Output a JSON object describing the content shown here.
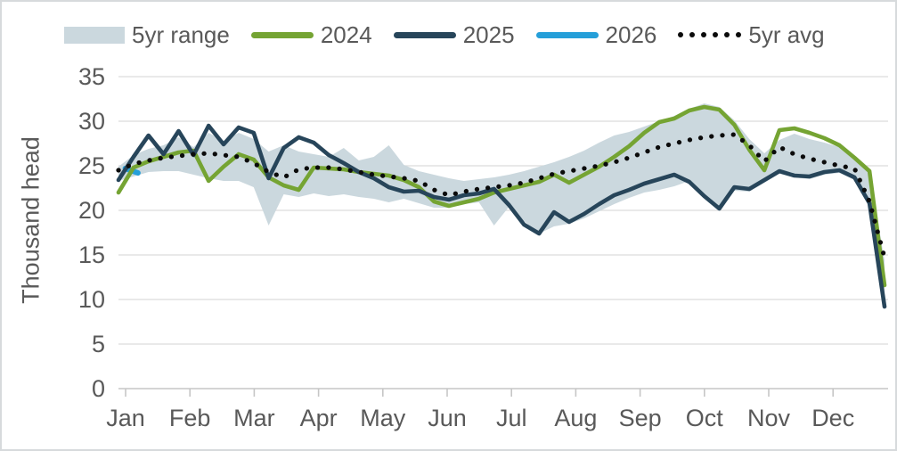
{
  "legend": {
    "items": [
      {
        "label": "5yr range",
        "kind": "band",
        "color": "#cbd8de"
      },
      {
        "label": "2024",
        "kind": "line",
        "color": "#75a433"
      },
      {
        "label": "2025",
        "kind": "line",
        "color": "#27455a"
      },
      {
        "label": "2026",
        "kind": "line",
        "color": "#259fd9"
      },
      {
        "label": "5yr avg",
        "kind": "dotted",
        "color": "#0b0b0b"
      }
    ]
  },
  "chart_data": {
    "type": "line",
    "title": "",
    "xlabel": "",
    "ylabel": "Thousand head",
    "ylim": [
      0,
      35
    ],
    "yticks": [
      0,
      5,
      10,
      15,
      20,
      25,
      30,
      35
    ],
    "x_unit": "week",
    "weeks": 52,
    "grid": "horizontal",
    "legend_position": "top",
    "months": [
      "Jan",
      "Feb",
      "Mar",
      "Apr",
      "May",
      "Jun",
      "Jul",
      "Aug",
      "Sep",
      "Oct",
      "Nov",
      "Dec"
    ],
    "colors": {
      "band": "#cbd8de",
      "line_2024": "#75a433",
      "line_2025": "#27455a",
      "line_2026": "#259fd9",
      "avg_dots": "#0b0b0b",
      "gridline": "#dcdcdc",
      "axis_line": "#c6c6c6",
      "axis_text": "#595959"
    },
    "series": [
      {
        "name": "5yr range",
        "kind": "band",
        "low": [
          23.3,
          23.8,
          24.3,
          24.4,
          24.4,
          24.0,
          23.6,
          23.3,
          23.3,
          22.6,
          18.3,
          21.8,
          21.5,
          21.9,
          21.6,
          21.8,
          21.5,
          21.3,
          20.9,
          21.3,
          20.8,
          20.3,
          20.3,
          20.7,
          20.9,
          18.3,
          20.4,
          18.8,
          17.4,
          18.2,
          18.5,
          19.1,
          19.9,
          20.7,
          21.4,
          22.0,
          22.3,
          22.7,
          23.3,
          21.4,
          19.9,
          22.2,
          22.1,
          23.1,
          24.1,
          23.7,
          23.5,
          24.0,
          24.2,
          23.4,
          20.4,
          9.1
        ],
        "high": [
          24.9,
          26.2,
          26.9,
          27.3,
          28.2,
          27.1,
          28.7,
          27.8,
          28.7,
          28.0,
          26.6,
          27.3,
          26.6,
          26.3,
          26.0,
          27.0,
          25.6,
          26.0,
          27.3,
          25.1,
          24.4,
          24.0,
          23.6,
          23.3,
          23.5,
          23.7,
          24.0,
          24.4,
          24.9,
          25.4,
          26.0,
          26.7,
          27.6,
          28.4,
          28.8,
          29.4,
          30.0,
          30.6,
          31.4,
          32.0,
          31.6,
          30.1,
          28.0,
          26.4,
          27.9,
          28.6,
          28.0,
          27.6,
          27.1,
          25.7,
          24.3,
          14.4
        ]
      },
      {
        "name": "2026",
        "kind": "line",
        "week_span": [
          1.45,
          2.3
        ],
        "values": [
          24.7,
          24.2
        ]
      },
      {
        "name": "2024",
        "kind": "line",
        "values": [
          22.0,
          24.8,
          25.5,
          26.0,
          26.5,
          26.7,
          23.3,
          24.9,
          26.3,
          25.7,
          23.7,
          22.8,
          22.3,
          24.8,
          24.7,
          24.6,
          24.3,
          24.1,
          23.9,
          23.4,
          22.6,
          21.0,
          20.5,
          20.9,
          21.3,
          22.0,
          22.4,
          22.8,
          23.2,
          24.0,
          23.1,
          24.0,
          24.9,
          26.0,
          27.2,
          28.7,
          29.9,
          30.3,
          31.2,
          31.6,
          31.3,
          29.6,
          26.8,
          24.5,
          29.0,
          29.2,
          28.7,
          28.1,
          27.3,
          25.9,
          24.4,
          11.6
        ]
      },
      {
        "name": "2025",
        "kind": "line",
        "values": [
          23.4,
          26.0,
          28.4,
          26.3,
          28.9,
          26.2,
          29.5,
          27.4,
          29.3,
          28.7,
          23.6,
          27.0,
          28.2,
          27.6,
          26.2,
          25.3,
          24.3,
          23.6,
          22.6,
          22.1,
          22.2,
          21.5,
          21.2,
          21.7,
          21.9,
          22.4,
          20.6,
          18.4,
          17.4,
          19.8,
          18.7,
          19.6,
          20.7,
          21.7,
          22.3,
          23.0,
          23.5,
          24.0,
          23.2,
          21.6,
          20.2,
          22.6,
          22.4,
          23.4,
          24.4,
          23.9,
          23.8,
          24.3,
          24.5,
          23.7,
          20.8,
          9.2
        ]
      },
      {
        "name": "5yr avg",
        "kind": "dotted",
        "values": [
          24.5,
          25.2,
          25.6,
          25.9,
          26.1,
          26.3,
          26.4,
          26.2,
          26.0,
          25.3,
          24.3,
          23.7,
          24.6,
          24.8,
          24.8,
          24.6,
          24.3,
          24.0,
          23.8,
          23.6,
          23.3,
          22.3,
          21.7,
          22.1,
          22.4,
          22.6,
          22.8,
          23.1,
          23.6,
          24.1,
          24.4,
          24.7,
          25.0,
          25.4,
          25.9,
          26.5,
          27.1,
          27.5,
          27.9,
          28.2,
          28.4,
          28.5,
          27.3,
          25.5,
          27.1,
          26.3,
          25.8,
          25.4,
          25.0,
          24.7,
          21.0,
          14.7
        ]
      }
    ]
  }
}
